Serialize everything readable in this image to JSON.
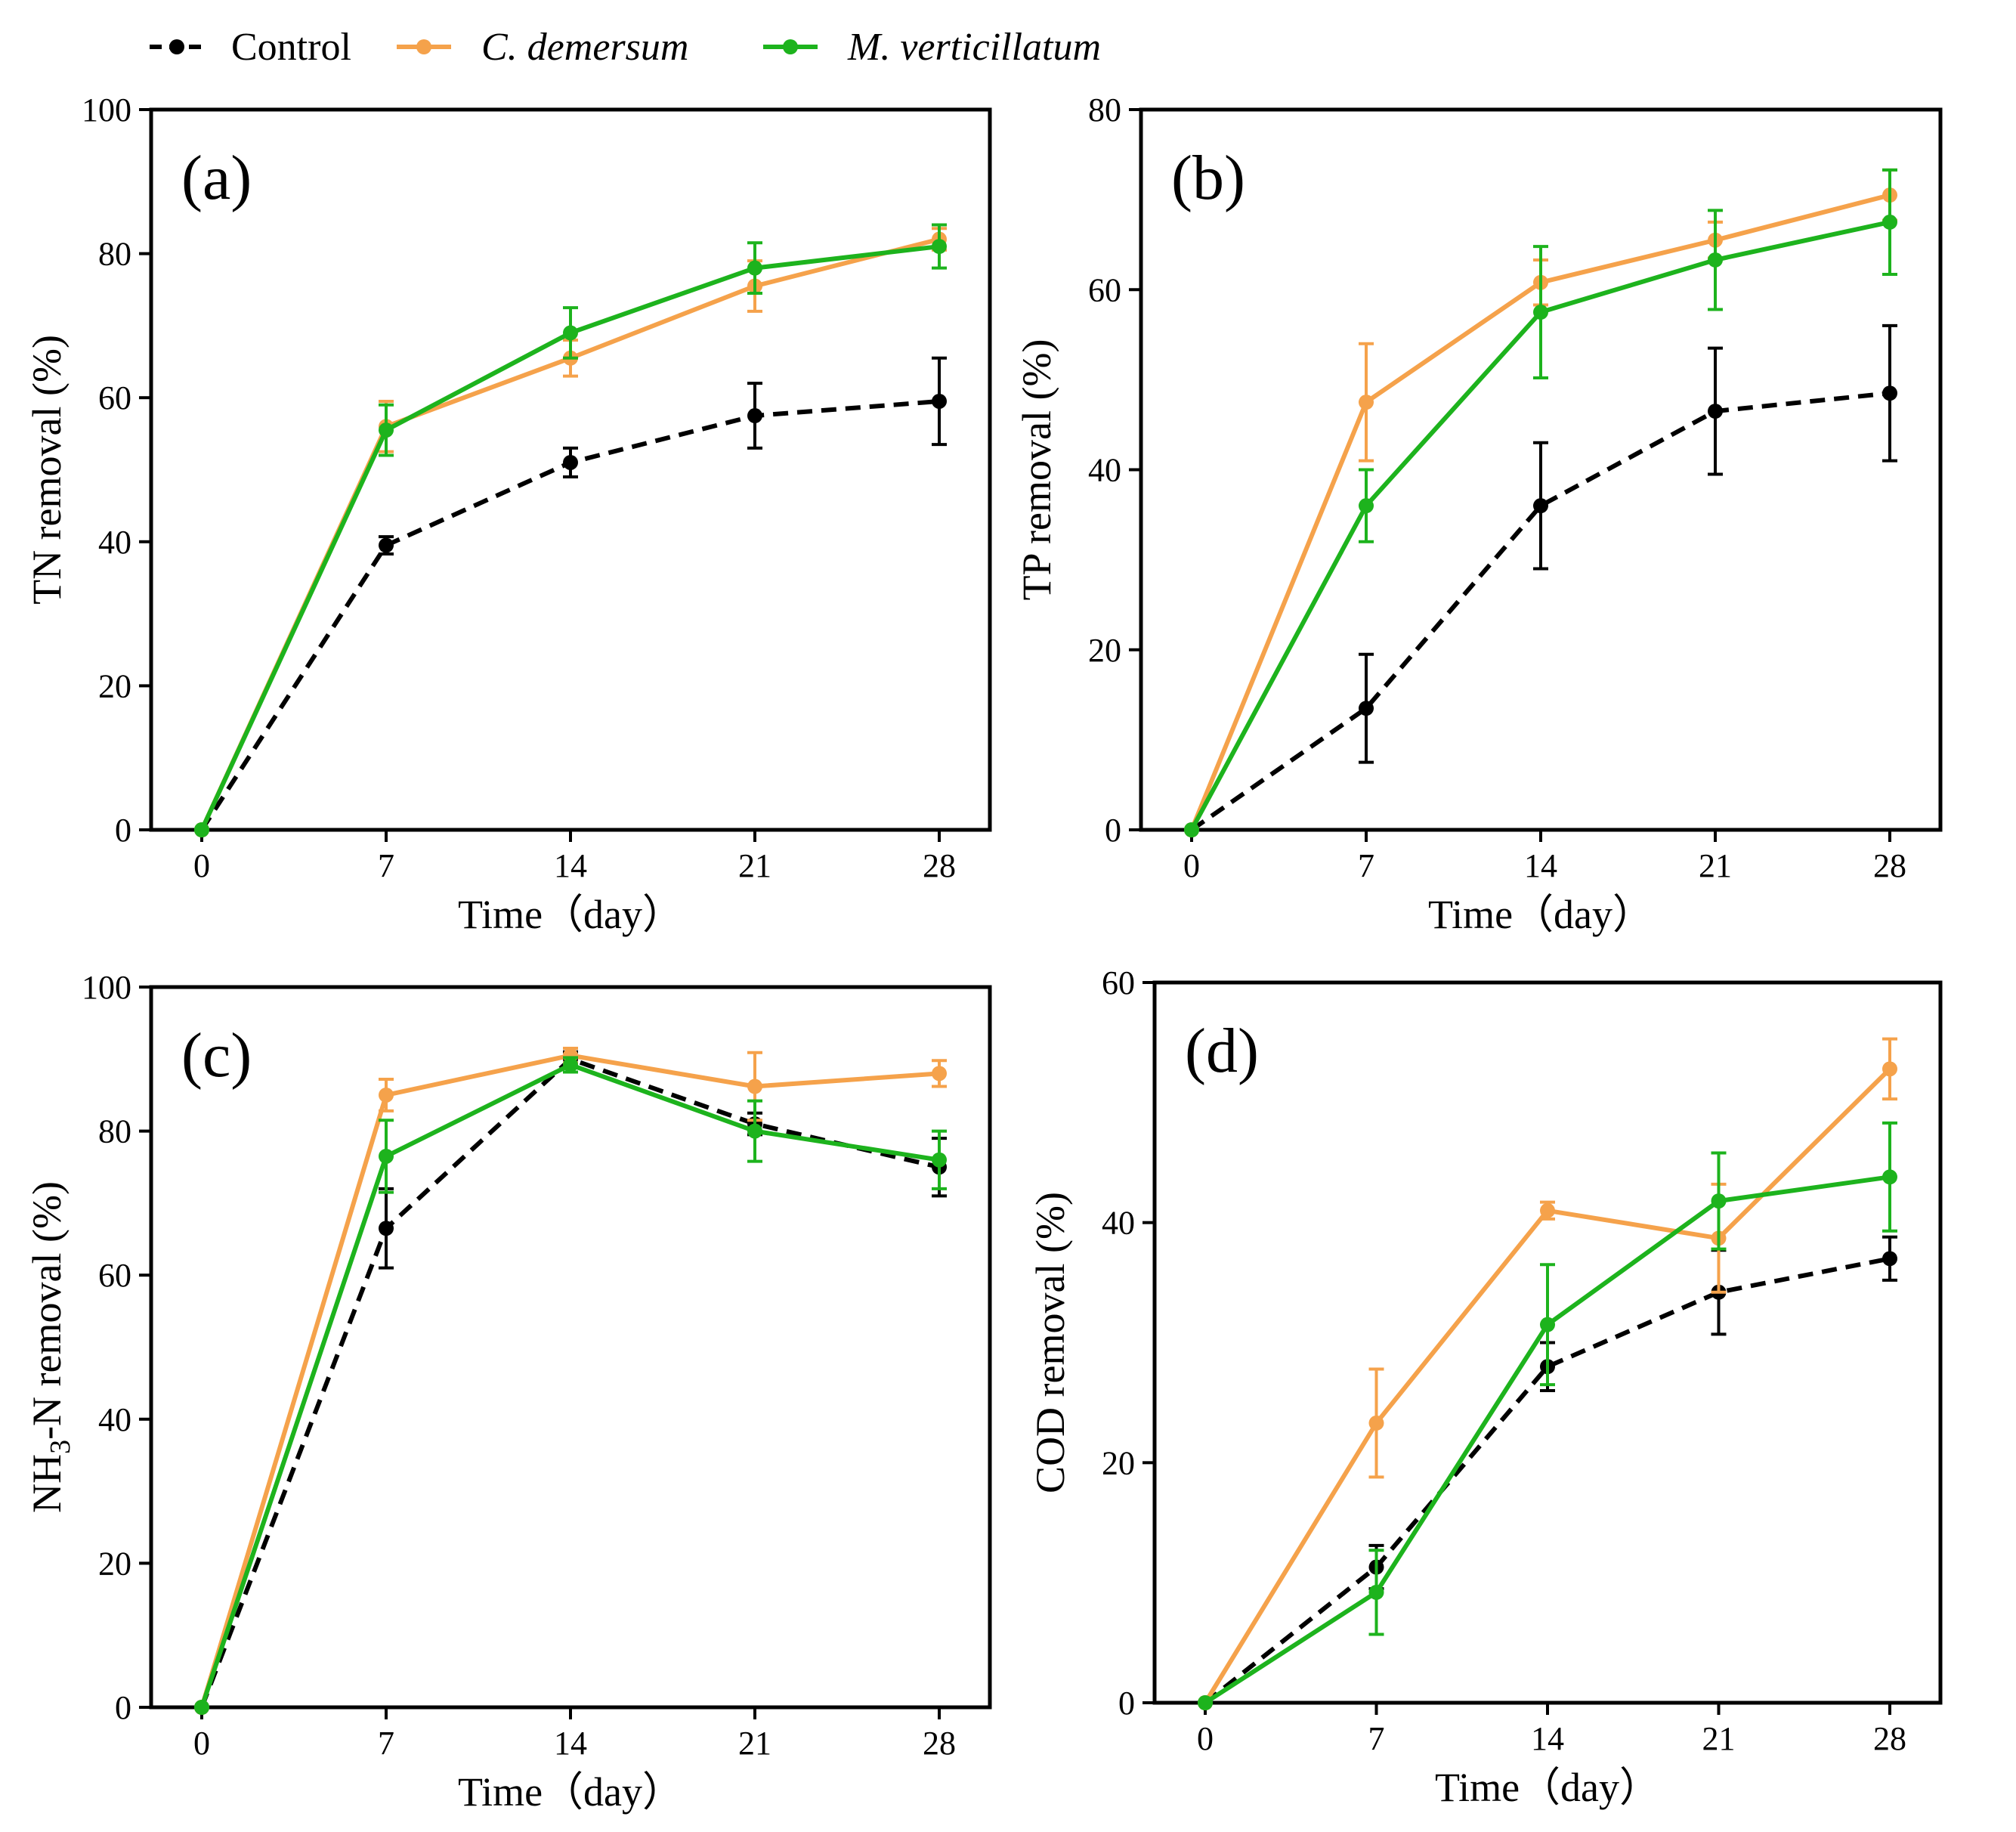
{
  "legend": [
    {
      "name": "Control",
      "color": "#000000",
      "dashed": true,
      "italic": false
    },
    {
      "name": "C. demersum",
      "color": "#F5A24B",
      "dashed": false,
      "italic": true
    },
    {
      "name": "M. verticillatum",
      "color": "#1DB31D",
      "dashed": false,
      "italic": true
    }
  ],
  "chart_data": [
    {
      "type": "line",
      "panel": "(a)",
      "xlabel": "Time（day）",
      "ylabel": "TN removal (%)",
      "ylabel_sub": "",
      "ylabel_prefix": "",
      "ylabel_suffix": "",
      "x": [
        0,
        7,
        14,
        21,
        28
      ],
      "xticks": [
        0,
        7,
        14,
        21,
        28
      ],
      "ylim": [
        0,
        100
      ],
      "yticks": [
        0,
        20,
        40,
        60,
        80,
        100
      ],
      "series": [
        {
          "name": "Control",
          "values": [
            0,
            39.5,
            51,
            57.5,
            59.5
          ],
          "errors": [
            0,
            1.2,
            2,
            4.5,
            6
          ]
        },
        {
          "name": "C. demersum",
          "values": [
            0,
            56,
            65.5,
            75.5,
            82
          ],
          "errors": [
            0,
            3.5,
            2.5,
            3.5,
            1.5
          ]
        },
        {
          "name": "M. verticillatum",
          "values": [
            0,
            55.5,
            69,
            78,
            81
          ],
          "errors": [
            0,
            3.5,
            3.5,
            3.5,
            3
          ]
        }
      ]
    },
    {
      "type": "line",
      "panel": "(b)",
      "xlabel": "Time（day）",
      "ylabel": "TP removal (%)",
      "ylabel_sub": "",
      "ylabel_prefix": "",
      "ylabel_suffix": "",
      "x": [
        0,
        7,
        14,
        21,
        28
      ],
      "xticks": [
        0,
        7,
        14,
        21,
        28
      ],
      "ylim": [
        0,
        80
      ],
      "yticks": [
        0,
        20,
        40,
        60,
        80
      ],
      "series": [
        {
          "name": "Control",
          "values": [
            0,
            13.5,
            36,
            46.5,
            48.5
          ],
          "errors": [
            0,
            6,
            7,
            7,
            7.5
          ]
        },
        {
          "name": "C. demersum",
          "values": [
            0,
            47.5,
            60.8,
            65.5,
            70.5
          ],
          "errors": [
            0,
            6.5,
            2.5,
            2,
            2.8
          ]
        },
        {
          "name": "M. verticillatum",
          "values": [
            0,
            36,
            57.5,
            63.3,
            67.5
          ],
          "errors": [
            0,
            4,
            7.3,
            5.5,
            5.8
          ]
        }
      ]
    },
    {
      "type": "line",
      "panel": "(c)",
      "xlabel": "Time（day）",
      "ylabel": "NH3-N removal (%)",
      "ylabel_prefix": "NH",
      "ylabel_sub": "3",
      "ylabel_suffix": "-N removal (%)",
      "x": [
        0,
        7,
        14,
        21,
        28
      ],
      "xticks": [
        0,
        7,
        14,
        21,
        28
      ],
      "ylim": [
        0,
        100
      ],
      "yticks": [
        0,
        20,
        40,
        60,
        80,
        100
      ],
      "series": [
        {
          "name": "Control",
          "values": [
            0,
            66.5,
            90,
            81,
            75
          ],
          "errors": [
            0,
            5.5,
            1,
            1.5,
            4
          ]
        },
        {
          "name": "C. demersum",
          "values": [
            0,
            85,
            90.5,
            86.2,
            88
          ],
          "errors": [
            0,
            2.2,
            1,
            4.7,
            1.8
          ]
        },
        {
          "name": "M. verticillatum",
          "values": [
            0,
            76.5,
            89.2,
            80,
            76
          ],
          "errors": [
            0,
            5,
            1,
            4.2,
            4
          ]
        }
      ]
    },
    {
      "type": "line",
      "panel": "(d)",
      "xlabel": "Time（day）",
      "ylabel": "COD removal (%)",
      "ylabel_sub": "",
      "ylabel_prefix": "",
      "ylabel_suffix": "",
      "x": [
        0,
        7,
        14,
        21,
        28
      ],
      "xticks": [
        0,
        7,
        14,
        21,
        28
      ],
      "ylim": [
        0,
        60
      ],
      "yticks": [
        0,
        20,
        40,
        60
      ],
      "series": [
        {
          "name": "Control",
          "values": [
            0,
            11.3,
            28,
            34.2,
            37
          ],
          "errors": [
            0,
            1.8,
            2,
            3.5,
            1.8
          ]
        },
        {
          "name": "C. demersum",
          "values": [
            0,
            23.3,
            41,
            38.7,
            52.8
          ],
          "errors": [
            0,
            4.5,
            0.7,
            4.5,
            2.5
          ]
        },
        {
          "name": "M. verticillatum",
          "values": [
            0,
            9.2,
            31.5,
            41.8,
            43.8
          ],
          "errors": [
            0,
            3.5,
            5,
            4,
            4.5
          ]
        }
      ]
    }
  ]
}
